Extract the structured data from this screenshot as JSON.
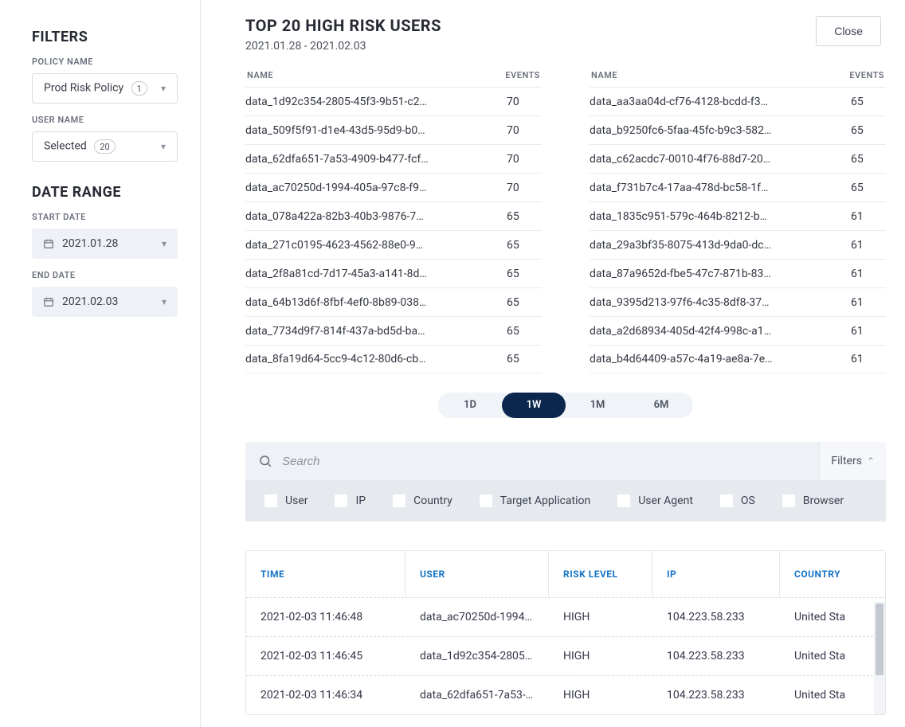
{
  "colors": {
    "accent_dark": "#0b274e",
    "link_blue": "#1572c4",
    "border": "#e4e7eb",
    "muted_bg": "#eef1f5",
    "text_primary": "#272a34",
    "text_secondary": "#6a707d"
  },
  "sidebar": {
    "filters_heading": "FILTERS",
    "policy_name_label": "POLICY NAME",
    "policy_name_value": "Prod Risk Policy",
    "policy_name_count": "1",
    "user_name_label": "USER NAME",
    "user_name_value": "Selected",
    "user_name_count": "20",
    "date_range_heading": "DATE RANGE",
    "start_date_label": "START DATE",
    "start_date_value": "2021.01.28",
    "end_date_label": "END DATE",
    "end_date_value": "2021.02.03"
  },
  "header": {
    "title": "TOP 20 HIGH RISK USERS",
    "subtitle": "2021.01.28 - 2021.02.03",
    "close_label": "Close"
  },
  "risk_table": {
    "col_name": "NAME",
    "col_events": "EVENTS",
    "left": [
      {
        "name": "data_1d92c354-2805-45f3-9b51-c2…",
        "events": "70"
      },
      {
        "name": "data_509f5f91-d1e4-43d5-95d9-b0a…",
        "events": "70"
      },
      {
        "name": "data_62dfa651-7a53-4909-b477-fcff…",
        "events": "70"
      },
      {
        "name": "data_ac70250d-1994-405a-97c8-f9…",
        "events": "70"
      },
      {
        "name": "data_078a422a-82b3-40b3-9876-7…",
        "events": "65"
      },
      {
        "name": "data_271c0195-4623-4562-88e0-9b…",
        "events": "65"
      },
      {
        "name": "data_2f8a81cd-7d17-45a3-a141-8d15…",
        "events": "65"
      },
      {
        "name": "data_64b13d6f-8fbf-4ef0-8b89-038…",
        "events": "65"
      },
      {
        "name": "data_7734d9f7-814f-437a-bd5d-bae…",
        "events": "65"
      },
      {
        "name": "data_8fa19d64-5cc9-4c12-80d6-cbf…",
        "events": "65"
      }
    ],
    "right": [
      {
        "name": "data_aa3aa04d-cf76-4128-bcdd-f3a…",
        "events": "65"
      },
      {
        "name": "data_b9250fc6-5faa-45fc-b9c3-582…",
        "events": "65"
      },
      {
        "name": "data_c62acdc7-0010-4f76-88d7-20…",
        "events": "65"
      },
      {
        "name": "data_f731b7c4-17aa-478d-bc58-1f711…",
        "events": "65"
      },
      {
        "name": "data_1835c951-579c-464b-8212-b51…",
        "events": "61"
      },
      {
        "name": "data_29a3bf35-8075-413d-9da0-dc…",
        "events": "61"
      },
      {
        "name": "data_87a9652d-fbe5-47c7-871b-83…",
        "events": "61"
      },
      {
        "name": "data_9395d213-97f6-4c35-8df8-379…",
        "events": "61"
      },
      {
        "name": "data_a2d68934-405d-42f4-998c-a1…",
        "events": "61"
      },
      {
        "name": "data_b4d64409-a57c-4a19-ae8a-7e…",
        "events": "61"
      }
    ]
  },
  "range_toggle": {
    "options": [
      "1D",
      "1W",
      "1M",
      "6M"
    ],
    "active_index": 1
  },
  "search": {
    "placeholder": "Search",
    "filters_label": "Filters"
  },
  "filter_checks": {
    "items": [
      "User",
      "IP",
      "Country",
      "Target Application",
      "User Agent",
      "OS",
      "Browser"
    ]
  },
  "grid": {
    "columns": [
      "TIME",
      "USER",
      "RISK LEVEL",
      "IP",
      "COUNTRY"
    ],
    "rows": [
      {
        "time": "2021-02-03 11:46:48",
        "user": "data_ac70250d-1994-4…",
        "risk": "HIGH",
        "ip": "104.223.58.233",
        "country": "United Sta"
      },
      {
        "time": "2021-02-03 11:46:45",
        "user": "data_1d92c354-2805-4…",
        "risk": "HIGH",
        "ip": "104.223.58.233",
        "country": "United Sta"
      },
      {
        "time": "2021-02-03 11:46:34",
        "user": "data_62dfa651-7a53-49…",
        "risk": "HIGH",
        "ip": "104.223.58.233",
        "country": "United Sta"
      }
    ]
  }
}
